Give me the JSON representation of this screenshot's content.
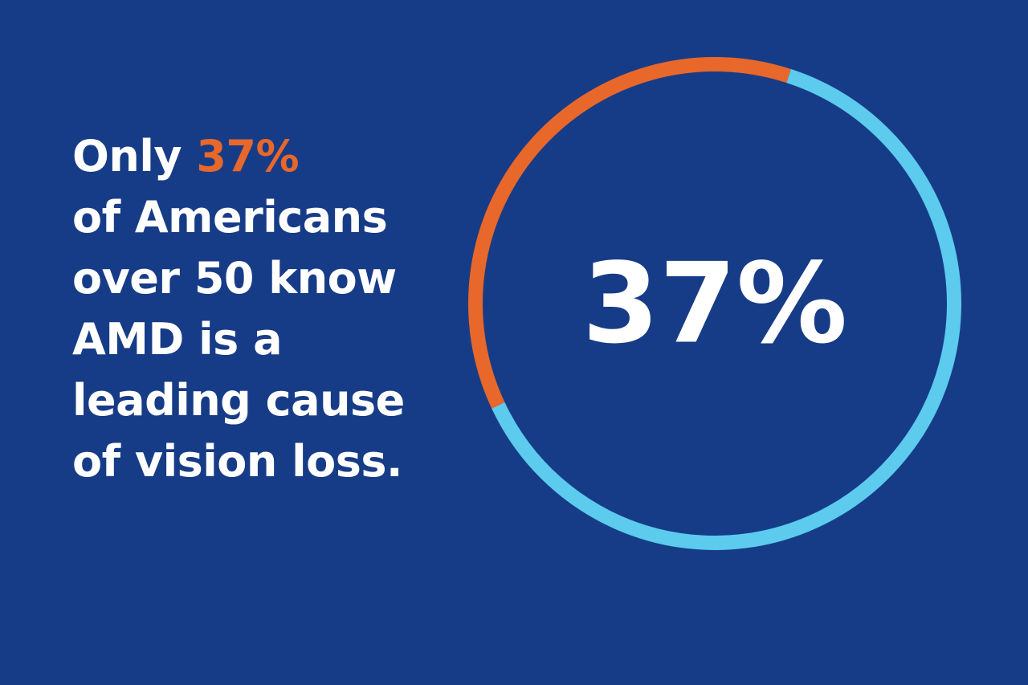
{
  "colors": {
    "background": "#173c87",
    "text": "#ffffff",
    "accent": "#e8672a",
    "remainder": "#5ccbed"
  },
  "headline": {
    "prefix": "Only ",
    "highlight": "37%",
    "lines": [
      "of Americans",
      "over 50 know",
      "AMD is a",
      "leading cause",
      "of vision loss."
    ]
  },
  "chart_data": {
    "type": "pie",
    "title": "",
    "center_label": "37%",
    "slices": [
      {
        "value": 37,
        "color": "#e8672a"
      },
      {
        "value": 63,
        "color": "#5ccbed"
      }
    ]
  }
}
